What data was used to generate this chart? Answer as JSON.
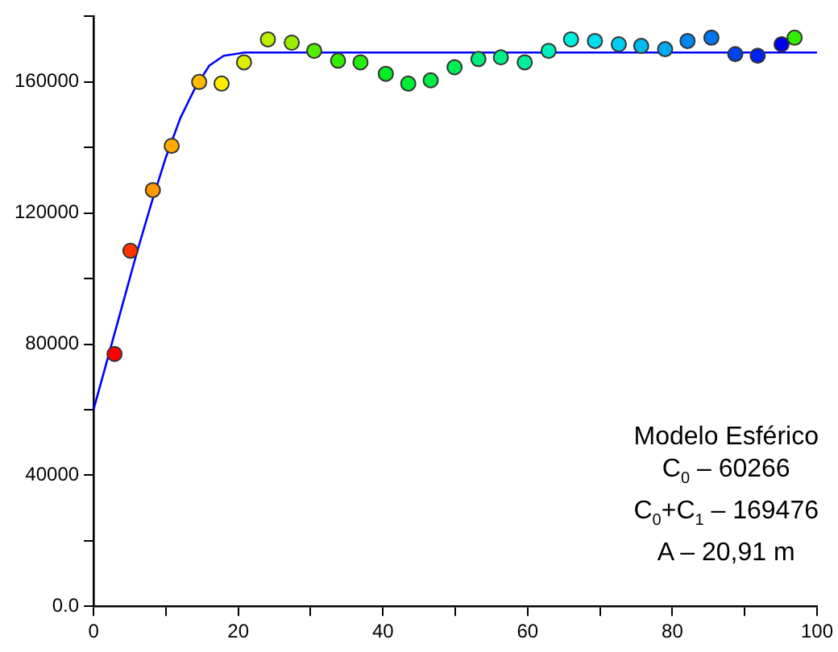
{
  "chart_data": {
    "type": "scatter",
    "legend": false,
    "grid": false,
    "xlim": [
      0,
      100
    ],
    "xticks": [
      0,
      {
        "value": 10,
        "label": null
      },
      20,
      {
        "value": 30,
        "label": null
      },
      40,
      {
        "value": 50,
        "label": null
      },
      60,
      {
        "value": 70,
        "label": null
      },
      80,
      {
        "value": 90,
        "label": null
      },
      100
    ],
    "ylim": [
      0,
      180000
    ],
    "yticks": [
      {
        "value": 0,
        "label": "0.0"
      },
      {
        "value": 20000,
        "label": null
      },
      40000,
      {
        "value": 60000,
        "label": null
      },
      80000,
      {
        "value": 100000,
        "label": null
      },
      120000,
      {
        "value": 140000,
        "label": null
      },
      160000,
      {
        "value": 180000,
        "label": null
      }
    ],
    "series": [
      {
        "type": "scatter",
        "marker": "circle",
        "x": [
          2.9,
          5.1,
          8.2,
          10.8,
          14.6,
          17.7,
          20.8,
          24.1,
          27.4,
          30.5,
          33.8,
          36.9,
          40.4,
          43.5,
          46.6,
          49.9,
          53.2,
          56.3,
          59.6,
          62.9,
          66.0,
          69.3,
          72.6,
          75.7,
          79.0,
          82.1,
          85.4,
          88.7,
          91.8,
          95.1,
          96.9
        ],
        "values": [
          77000,
          108500,
          127000,
          140500,
          160000,
          159500,
          166000,
          173000,
          172000,
          169500,
          166500,
          166000,
          162500,
          159500,
          160500,
          164500,
          167000,
          167500,
          166000,
          169500,
          173000,
          172500,
          171500,
          171000,
          170000,
          172500,
          173500,
          168500,
          168000,
          171500,
          173500
        ],
        "colors": [
          "#ff0000",
          "#ff3300",
          "#ff9900",
          "#ffaa00",
          "#ffbb00",
          "#ffee00",
          "#ddee00",
          "#bbee00",
          "#99ee00",
          "#55ee00",
          "#33ee00",
          "#22ee11",
          "#00ee22",
          "#00ee33",
          "#00ee44",
          "#00ee55",
          "#00ee77",
          "#00ee88",
          "#00ee99",
          "#00eebb",
          "#00eedd",
          "#00ddee",
          "#00ccee",
          "#00bbee",
          "#00aaee",
          "#0088ee",
          "#0077ee",
          "#0044ee",
          "#0022ee",
          "#0000ee",
          "#33ee00"
        ]
      },
      {
        "type": "line",
        "color": "#0000ff",
        "x": [
          0,
          2,
          4,
          6,
          8,
          10,
          12,
          14,
          16,
          18,
          20.91,
          100
        ],
        "values": [
          60000,
          76000,
          92000,
          108000,
          123000,
          137000,
          149000,
          158000,
          165000,
          168000,
          169000,
          169000
        ]
      }
    ],
    "annotations": [
      "Modelo Esférico",
      "C$_{0}$ – 60266",
      "C$_{0}$+C$_{1}$ – 169476",
      "A – 20,91 m"
    ]
  }
}
